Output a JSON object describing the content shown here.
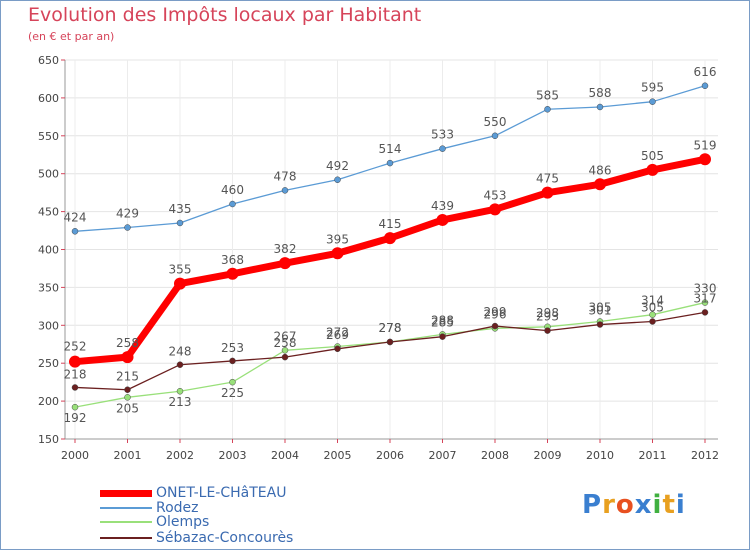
{
  "title": "Evolution des Impôts locaux par Habitant",
  "subtitle": "(en € et par an)",
  "logo": [
    "P",
    "r",
    "o",
    "x",
    "i",
    "t",
    "i"
  ],
  "chart_data": {
    "type": "line",
    "x": [
      "2000",
      "2001",
      "2002",
      "2003",
      "2004",
      "2005",
      "2006",
      "2007",
      "2008",
      "2009",
      "2010",
      "2011",
      "2012"
    ],
    "ylim": [
      150,
      650
    ],
    "yticks": [
      150,
      200,
      250,
      300,
      350,
      400,
      450,
      500,
      550,
      600,
      650
    ],
    "series": [
      {
        "name": "ONET-LE-CHâTEAU",
        "color": "#ff0000",
        "values": [
          252,
          258,
          355,
          368,
          382,
          395,
          415,
          439,
          453,
          475,
          486,
          505,
          519
        ]
      },
      {
        "name": "Rodez",
        "color": "#5b9bd5",
        "values": [
          424,
          429,
          435,
          460,
          478,
          492,
          514,
          533,
          550,
          585,
          588,
          595,
          616
        ]
      },
      {
        "name": "Olemps",
        "color": "#99e07a",
        "values": [
          192,
          205,
          213,
          225,
          267,
          272,
          278,
          288,
          296,
          298,
          305,
          314,
          330
        ]
      },
      {
        "name": "Sébazac-Concourès",
        "color": "#6b2020",
        "values": [
          218,
          215,
          248,
          253,
          258,
          269,
          278,
          285,
          299,
          293,
          301,
          305,
          317
        ]
      }
    ]
  }
}
